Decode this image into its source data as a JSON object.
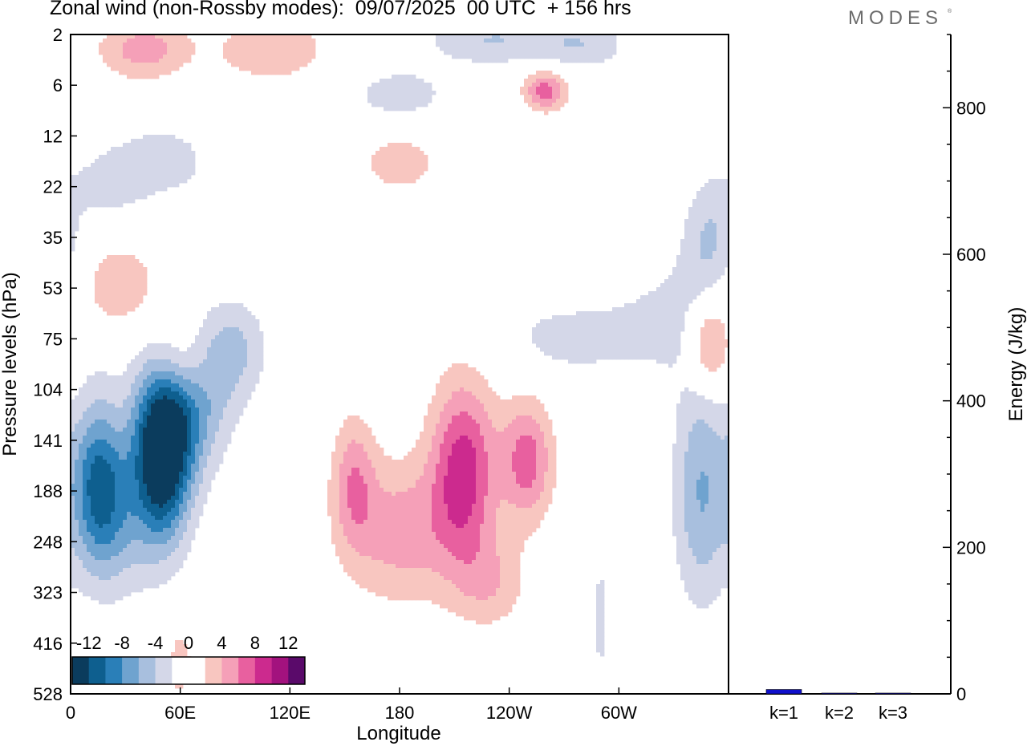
{
  "title": "Zonal wind (non-Rossby modes):  09/07/2025  00 UTC  + 156 hrs",
  "logo": "MODES",
  "logo_mark": "®",
  "colors": {
    "scale": [
      "#0b3c5d",
      "#0e5f8f",
      "#2a7fb8",
      "#6fa3cf",
      "#a8bfde",
      "#d4d7e8",
      "#ffffff",
      "#ffffff",
      "#f8c6c0",
      "#f5a0b8",
      "#e8609f",
      "#cc2a8e",
      "#a3127e",
      "#5a0a6a"
    ],
    "bar": "#1010cc"
  },
  "chart_data": [
    {
      "type": "heatmap",
      "title": "Zonal wind (non-Rossby modes):  09/07/2025  00 UTC  + 156 hrs",
      "xlabel": "Longitude",
      "ylabel": "Pressure levels (hPa)",
      "xticks": [
        "0",
        "60E",
        "120E",
        "180",
        "120W",
        "60W"
      ],
      "yticks": [
        "2",
        "6",
        "12",
        "22",
        "35",
        "53",
        "75",
        "104",
        "141",
        "188",
        "248",
        "323",
        "416",
        "528"
      ],
      "colorbar": {
        "labels": [
          "-12",
          "-8",
          "-4",
          "0",
          "4",
          "8",
          "12"
        ],
        "levels": [
          -14,
          -12,
          -10,
          -8,
          -6,
          -4,
          -2,
          0,
          2,
          4,
          6,
          8,
          10,
          12,
          14
        ]
      },
      "blobs": [
        {
          "lon": 50,
          "lev": 8.3,
          "dlon": 16,
          "dlev": 1.7,
          "v": -15
        },
        {
          "lon": 15,
          "lev": 8.8,
          "dlon": 14,
          "dlev": 1.6,
          "v": -9
        },
        {
          "lon": 65,
          "lev": 7.2,
          "dlon": 22,
          "dlev": 1.4,
          "v": -7
        },
        {
          "lon": 25,
          "lev": 9.6,
          "dlon": 20,
          "dlev": 1.5,
          "v": -4
        },
        {
          "lon": 90,
          "lev": 6.2,
          "dlon": 18,
          "dlev": 1.0,
          "v": -4
        },
        {
          "lon": 345,
          "lev": 9.0,
          "dlon": 15,
          "dlev": 2.2,
          "v": -6
        },
        {
          "lon": 350,
          "lev": 4.0,
          "dlon": 15,
          "dlev": 1.2,
          "v": -4
        },
        {
          "lon": 335,
          "lev": 5.6,
          "dlon": 40,
          "dlev": 1.3,
          "v": -2.6
        },
        {
          "lon": 270,
          "lev": 6.0,
          "dlon": 40,
          "dlev": 0.8,
          "v": -2.6
        },
        {
          "lon": 180,
          "lev": 1.2,
          "dlon": 30,
          "dlev": 0.6,
          "v": -3
        },
        {
          "lon": 230,
          "lev": 0.1,
          "dlon": 35,
          "dlev": 0.5,
          "v": -4
        },
        {
          "lon": 280,
          "lev": 0.2,
          "dlon": 25,
          "dlev": 0.5,
          "v": -3.5
        },
        {
          "lon": 50,
          "lev": 2.5,
          "dlon": 30,
          "dlev": 0.8,
          "v": -3
        },
        {
          "lon": 20,
          "lev": 3.0,
          "dlon": 20,
          "dlev": 0.7,
          "v": -2.5
        },
        {
          "lon": 290,
          "lev": 11.5,
          "dlon": 5,
          "dlev": 1.5,
          "v": -2.6
        },
        {
          "lon": 215,
          "lev": 8.6,
          "dlon": 18,
          "dlev": 1.8,
          "v": 9
        },
        {
          "lon": 250,
          "lev": 8.4,
          "dlon": 14,
          "dlev": 1.2,
          "v": 7
        },
        {
          "lon": 180,
          "lev": 9.8,
          "dlon": 30,
          "dlev": 1.4,
          "v": 5
        },
        {
          "lon": 155,
          "lev": 8.8,
          "dlon": 12,
          "dlev": 1.3,
          "v": 5
        },
        {
          "lon": 230,
          "lev": 10.8,
          "dlon": 20,
          "dlev": 0.9,
          "v": 3.5
        },
        {
          "lon": 350,
          "lev": 6.1,
          "dlon": 12,
          "dlev": 0.9,
          "v": 7
        },
        {
          "lon": 60,
          "lev": 6.5,
          "dlon": 16,
          "dlev": 0.9,
          "v": 5
        },
        {
          "lon": 25,
          "lev": 5.0,
          "dlon": 25,
          "dlev": 0.9,
          "v": 4
        },
        {
          "lon": 260,
          "lev": 1.1,
          "dlon": 12,
          "dlev": 0.4,
          "v": 7
        },
        {
          "lon": 180,
          "lev": 2.5,
          "dlon": 25,
          "dlev": 0.7,
          "v": 3
        },
        {
          "lon": 40,
          "lev": 0.3,
          "dlon": 25,
          "dlev": 0.6,
          "v": 5
        },
        {
          "lon": 110,
          "lev": 0.3,
          "dlon": 30,
          "dlev": 0.6,
          "v": 4
        },
        {
          "lon": 60,
          "lev": 12.4,
          "dlon": 8,
          "dlev": 0.8,
          "v": 3
        }
      ]
    },
    {
      "type": "bar",
      "categories": [
        "k=1",
        "k=2",
        "k=3"
      ],
      "values": [
        6,
        1,
        1
      ],
      "ylabel": "Energy (J/kg)",
      "yticks": [
        "0",
        "200",
        "400",
        "600",
        "800"
      ],
      "ylim": [
        0,
        900
      ]
    }
  ]
}
